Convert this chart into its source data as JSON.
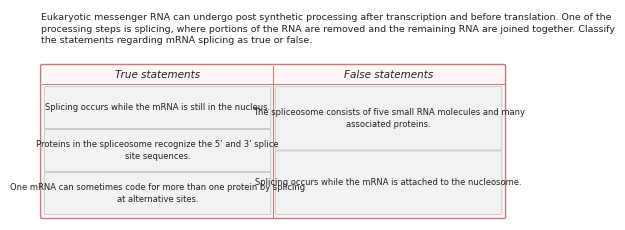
{
  "title_line1": "Eukaryotic messenger RNA can undergo post synthetic processing after transcription and before translation. One of the",
  "title_line2": "processing steps is splicing, where portions of the RNA are removed and the remaining RNA are joined together. Classify",
  "title_line3": "the statements regarding mRNA splicing as true or false.",
  "col_left_header": "True statements",
  "col_right_header": "False statements",
  "true_statements": [
    "Splicing occurs while the mRNA is still in the nucleus.",
    "Proteins in the spliceosome recognize the 5’ and 3’ splice\nsite sequences.",
    "One mRNA can sometimes code for more than one protein by splicing\nat alternative sites."
  ],
  "false_statements": [
    "The spliceosome consists of five small RNA molecules and many\nassociated proteins.",
    "Splicing occurs while the mRNA is attached to the nucleosome."
  ],
  "outer_border_color": "#c97a7a",
  "inner_box_facecolor": "#f2f2f2",
  "inner_box_edgecolor": "#bbbbbb",
  "outer_facecolor": "#fdf5f5",
  "bg_color": "#ffffff",
  "text_color": "#222222",
  "header_fontsize": 7.5,
  "body_fontsize": 6.0,
  "title_fontsize": 6.8
}
